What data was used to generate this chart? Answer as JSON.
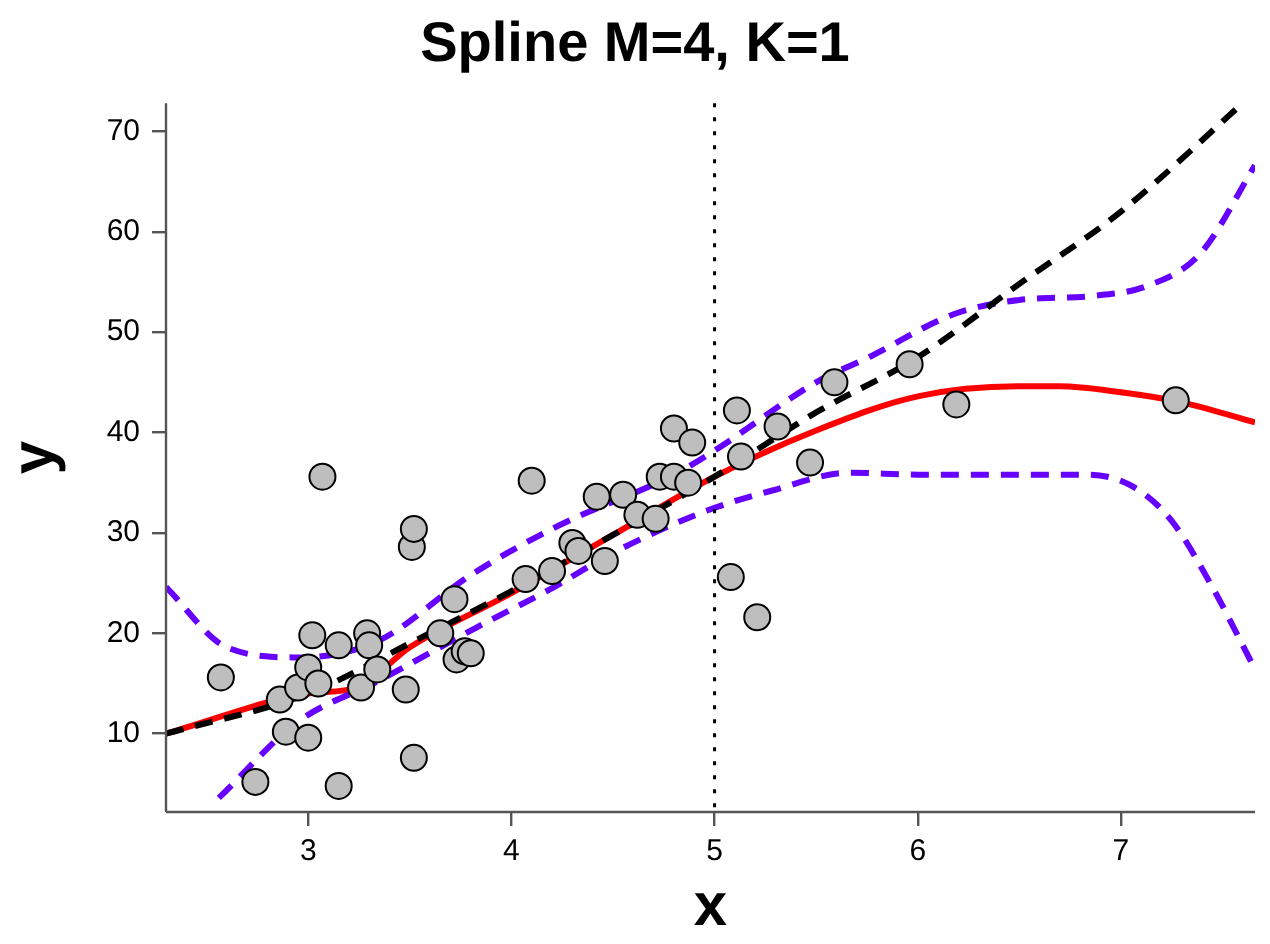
{
  "chart_data": {
    "type": "scatter",
    "title": "Spline M=4, K=1",
    "xlabel": "x",
    "ylabel": "y",
    "xlim": [
      2.3,
      7.66
    ],
    "ylim": [
      2.2,
      72.8
    ],
    "xticks": [
      3,
      4,
      5,
      6,
      7
    ],
    "yticks": [
      10,
      20,
      30,
      40,
      50,
      60,
      70
    ],
    "grid": false,
    "legend": false,
    "ref_lines": [
      {
        "axis": "x",
        "value": 5,
        "color": "#000000",
        "line_style": "dotted"
      }
    ],
    "series": [
      {
        "type": "line",
        "color": "#000000",
        "line_style": "dashed",
        "marker": "none",
        "x": [
          2.3,
          3,
          3.5,
          4,
          4.5,
          5,
          5.5,
          6,
          6.5,
          7,
          7.6
        ],
        "values": [
          10,
          14,
          19,
          24.2,
          29.8,
          35.6,
          42,
          47.5,
          54.8,
          62,
          72.8
        ]
      },
      {
        "type": "line",
        "color": "#6600ff",
        "line_style": "dashed",
        "marker": "none",
        "x": [
          2.3,
          2.6,
          2.95,
          3.34,
          3.8,
          4.22,
          4.8,
          5,
          5.5,
          5.77,
          6.18,
          6.5,
          6.86,
          7.13,
          7.39,
          7.66
        ],
        "values": [
          24.6,
          18.6,
          17.6,
          19.2,
          25.8,
          30.6,
          35.8,
          38.2,
          45,
          47.6,
          51.8,
          53.2,
          53.6,
          54.6,
          57.8,
          66.6
        ]
      },
      {
        "type": "line",
        "color": "#6600ff",
        "line_style": "dashed",
        "marker": "none",
        "x": [
          2.56,
          2.95,
          3.34,
          3.83,
          4.21,
          4.48,
          4.96,
          5.28,
          5.67,
          6,
          6.5,
          6.84,
          7.06,
          7.25,
          7.45,
          7.64
        ],
        "values": [
          3.6,
          11.2,
          15.2,
          20.6,
          24.6,
          27.8,
          32.2,
          34.2,
          36,
          35.8,
          35.8,
          35.8,
          34.6,
          31.2,
          24.6,
          17.2
        ]
      },
      {
        "type": "line",
        "color": "#ff0000",
        "line_style": "solid",
        "marker": "none",
        "x": [
          2.3,
          3,
          3.24,
          3.5,
          4,
          4.5,
          5,
          5.5,
          6,
          6.5,
          6.7,
          7,
          7.3,
          7.66
        ],
        "values": [
          10,
          14,
          14.6,
          18.6,
          24,
          29.8,
          35.6,
          40.2,
          43.6,
          44.6,
          44.6,
          44,
          43,
          41
        ]
      },
      {
        "type": "scatter",
        "color": "#bebebe",
        "marker": "circle",
        "x": [
          2.57,
          2.74,
          2.86,
          2.89,
          2.95,
          3,
          3,
          3.02,
          3.07,
          3.05,
          3.15,
          3.15,
          3.26,
          3.29,
          3.3,
          3.34,
          3.48,
          3.51,
          3.52,
          3.52,
          3.65,
          3.72,
          3.73,
          3.77,
          3.8,
          4.07,
          4.1,
          4.2,
          4.3,
          4.33,
          4.46,
          4.42,
          4.55,
          4.62,
          4.71,
          4.73,
          4.8,
          4.8,
          4.89,
          4.87,
          5.08,
          5.11,
          5.13,
          5.21,
          5.31,
          5.47,
          5.59,
          5.96,
          6.19,
          7.27
        ],
        "values": [
          15.6,
          5.2,
          13.4,
          10.2,
          14.6,
          9.6,
          16.6,
          19.8,
          35.6,
          15,
          18.8,
          4.8,
          14.6,
          20,
          18.8,
          16.4,
          14.4,
          28.6,
          30.4,
          7.6,
          20,
          23.4,
          17.4,
          18.2,
          18,
          25.4,
          35.2,
          26.2,
          29,
          28.2,
          27.2,
          33.6,
          33.8,
          31.8,
          31.4,
          35.6,
          40.4,
          35.6,
          39,
          35,
          25.6,
          42.2,
          37.6,
          21.6,
          40.6,
          37,
          45,
          46.8,
          42.8,
          43.2
        ]
      }
    ]
  }
}
